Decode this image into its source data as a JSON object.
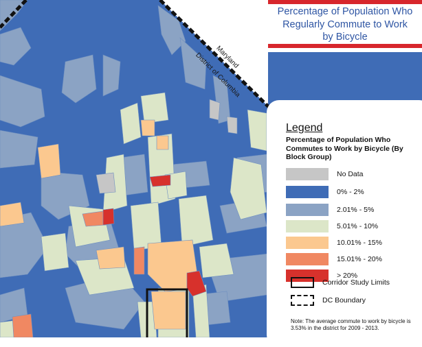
{
  "title": {
    "line1": "Percentage of Population Who",
    "line2": "Regularly Commute to Work",
    "line3": "by Bicycle"
  },
  "state_labels": {
    "maryland": "Maryland",
    "dc": "District of Columbia"
  },
  "legend": {
    "heading": "Legend",
    "subtitle": "Percentage of Population Who Commutes to Work by Bicycle (By Block Group)",
    "items": [
      {
        "label": "No Data",
        "color": "#c6c6c6"
      },
      {
        "label": "0% - 2%",
        "color": "#3f6cb6"
      },
      {
        "label": "2.01% - 5%",
        "color": "#8ba3c4"
      },
      {
        "label": "5.01% - 10%",
        "color": "#dce6c8"
      },
      {
        "label": "10.01% - 15%",
        "color": "#fbc88f"
      },
      {
        "label": "15.01% - 20%",
        "color": "#f08862"
      },
      {
        "label": "> 20%",
        "color": "#d7312c"
      }
    ],
    "corridor_label": "Corridor Study Limits",
    "dc_boundary_label": "DC Boundary",
    "note": "Note: The average commute to work by bicycle is 3.53% in the district for 2009 - 2013."
  },
  "accent_color": "#d7262c",
  "title_color": "#2e55a3"
}
